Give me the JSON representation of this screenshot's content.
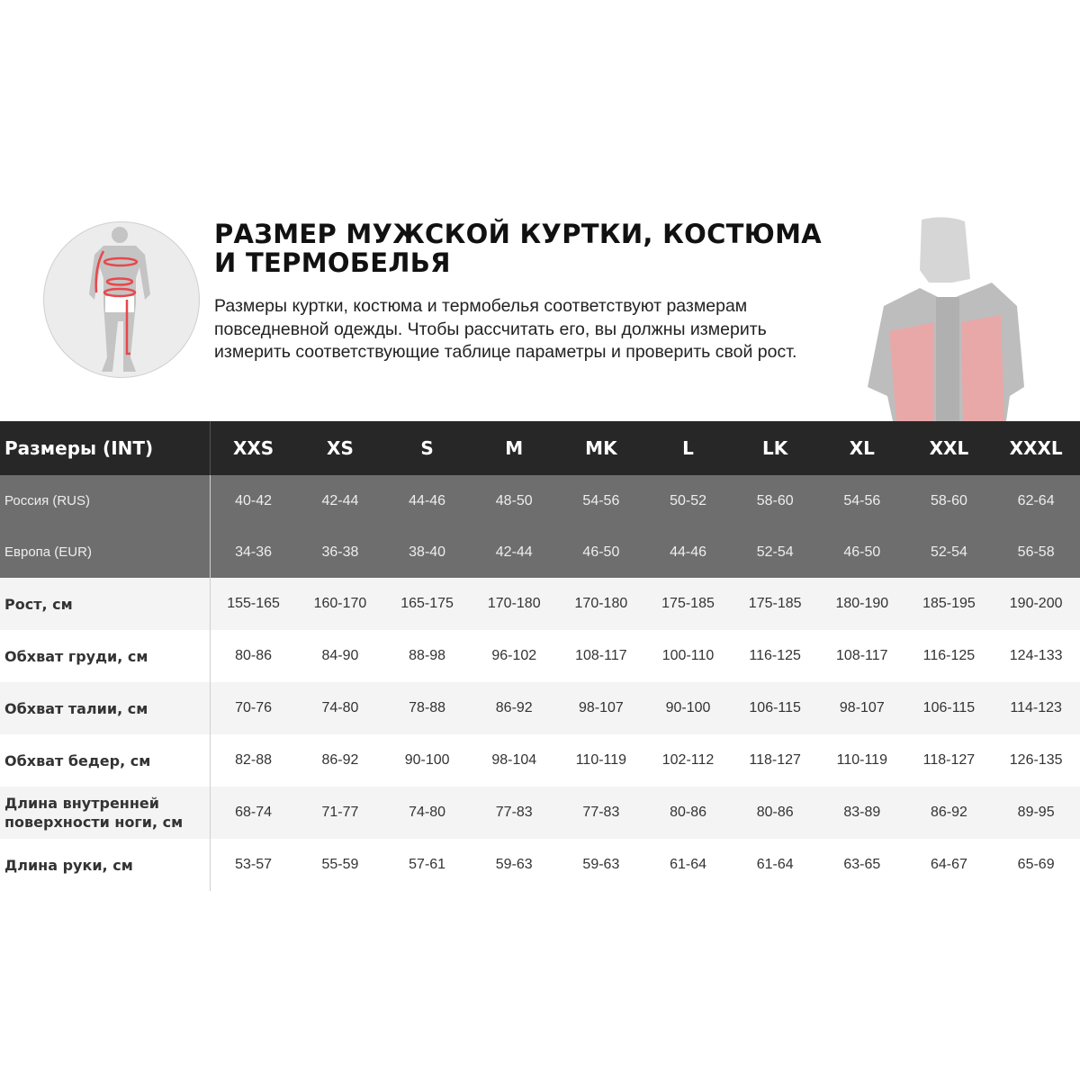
{
  "header": {
    "title": "РАЗМЕР МУЖСКОЙ КУРТКИ, КОСТЮМА И ТЕРМОБЕЛЬЯ",
    "description": "Размеры куртки, костюма и термобелья соответствуют размерам повседневной одежды. Чтобы рассчитать его, вы должны измерить измерить соответствующие таблице параметры и проверить свой рост."
  },
  "colors": {
    "header_bg": "#272727",
    "region_bg": "#6e6e6e",
    "accent_red": "#e8474b"
  },
  "table": {
    "header_label": "Размеры (INT)",
    "sizes": [
      "XXS",
      "XS",
      "S",
      "M",
      "MK",
      "L",
      "LK",
      "XL",
      "XXL",
      "XXXL"
    ],
    "rows": [
      {
        "label": "Россия (RUS)",
        "values": [
          "40-42",
          "42-44",
          "44-46",
          "48-50",
          "54-56",
          "50-52",
          "58-60",
          "54-56",
          "58-60",
          "62-64"
        ]
      },
      {
        "label": "Европа (EUR)",
        "values": [
          "34-36",
          "36-38",
          "38-40",
          "42-44",
          "46-50",
          "44-46",
          "52-54",
          "46-50",
          "52-54",
          "56-58"
        ]
      },
      {
        "label": "Рост, см",
        "values": [
          "155-165",
          "160-170",
          "165-175",
          "170-180",
          "170-180",
          "175-185",
          "175-185",
          "180-190",
          "185-195",
          "190-200"
        ]
      },
      {
        "label": "Обхват груди, см",
        "values": [
          "80-86",
          "84-90",
          "88-98",
          "96-102",
          "108-117",
          "100-110",
          "116-125",
          "108-117",
          "116-125",
          "124-133"
        ]
      },
      {
        "label": "Обхват талии, см",
        "values": [
          "70-76",
          "74-80",
          "78-88",
          "86-92",
          "98-107",
          "90-100",
          "106-115",
          "98-107",
          "106-115",
          "114-123"
        ]
      },
      {
        "label": "Обхват бедер, см",
        "values": [
          "82-88",
          "86-92",
          "90-100",
          "98-104",
          "110-119",
          "102-112",
          "118-127",
          "110-119",
          "118-127",
          "126-135"
        ]
      },
      {
        "label": "Длина внутренней поверхности ноги, см",
        "values": [
          "68-74",
          "71-77",
          "74-80",
          "77-83",
          "77-83",
          "80-86",
          "80-86",
          "83-89",
          "86-92",
          "89-95"
        ]
      },
      {
        "label": "Длина руки, см",
        "values": [
          "53-57",
          "55-59",
          "57-61",
          "59-63",
          "59-63",
          "61-64",
          "61-64",
          "63-65",
          "64-67",
          "65-69"
        ]
      }
    ]
  }
}
